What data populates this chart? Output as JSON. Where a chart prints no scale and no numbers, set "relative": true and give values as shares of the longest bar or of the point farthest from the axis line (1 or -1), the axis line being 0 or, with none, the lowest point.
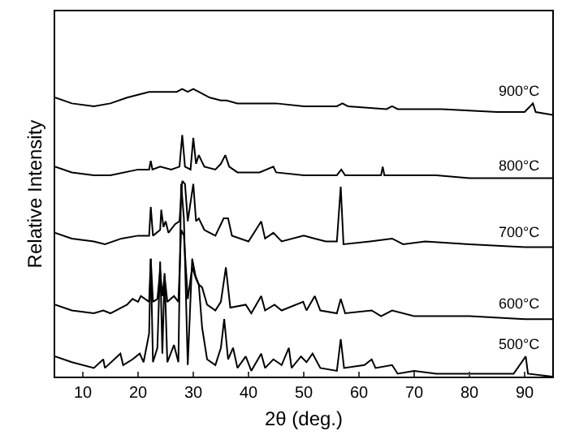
{
  "chart_data": {
    "type": "line",
    "xlabel": "2θ (deg.)",
    "ylabel": "Relative Intensity",
    "relative": true,
    "xlim": [
      5,
      95
    ],
    "xticks": [
      10,
      20,
      30,
      40,
      50,
      60,
      70,
      80,
      90
    ],
    "legend": false,
    "marker": "none",
    "line_style": "solid",
    "series": [
      {
        "name": "900°C",
        "color": "#000000",
        "x": [
          5,
          8,
          12,
          15,
          18,
          20,
          22,
          25,
          27,
          28,
          29,
          30,
          31,
          33,
          35,
          36,
          38,
          42,
          45,
          50,
          56,
          57,
          58,
          65,
          66,
          67,
          75,
          85,
          90,
          91.5,
          92,
          95
        ],
        "values": [
          0.97,
          0.95,
          0.94,
          0.95,
          0.97,
          0.98,
          0.99,
          0.99,
          0.99,
          1.0,
          0.99,
          1.0,
          0.99,
          0.97,
          0.96,
          0.96,
          0.95,
          0.95,
          0.95,
          0.94,
          0.94,
          0.95,
          0.94,
          0.93,
          0.94,
          0.93,
          0.93,
          0.92,
          0.92,
          0.95,
          0.92,
          0.91
        ]
      },
      {
        "name": "800°C",
        "color": "#000000",
        "x": [
          5,
          8,
          12,
          15,
          20,
          22,
          22.3,
          22.6,
          24,
          26,
          27.5,
          28,
          28.5,
          29.5,
          30,
          30.5,
          31,
          32,
          34,
          35,
          35.8,
          36.5,
          38,
          42,
          44.5,
          45,
          50,
          56,
          56.8,
          57.5,
          64,
          64.3,
          64.6,
          68,
          74,
          80,
          90,
          95
        ],
        "values": [
          0.73,
          0.71,
          0.7,
          0.7,
          0.72,
          0.72,
          0.75,
          0.72,
          0.73,
          0.72,
          0.73,
          0.84,
          0.73,
          0.72,
          0.83,
          0.74,
          0.77,
          0.73,
          0.72,
          0.74,
          0.77,
          0.73,
          0.71,
          0.71,
          0.73,
          0.71,
          0.7,
          0.7,
          0.72,
          0.7,
          0.7,
          0.73,
          0.7,
          0.7,
          0.7,
          0.69,
          0.69,
          0.69
        ]
      },
      {
        "name": "700°C",
        "color": "#000000",
        "x": [
          5,
          8,
          12,
          14,
          17,
          20,
          22,
          22.3,
          22.7,
          24,
          24.2,
          24.6,
          25,
          25.5,
          26.7,
          27.5,
          28,
          28.5,
          29,
          30,
          30.5,
          31,
          32,
          34,
          35,
          35.5,
          36.3,
          37,
          40,
          42.3,
          43,
          44.5,
          46,
          50,
          52,
          54,
          56,
          56.7,
          57.2,
          62,
          66,
          68,
          72,
          80,
          90,
          95
        ],
        "values": [
          0.5,
          0.48,
          0.47,
          0.46,
          0.48,
          0.49,
          0.49,
          0.59,
          0.49,
          0.51,
          0.58,
          0.52,
          0.54,
          0.5,
          0.53,
          0.54,
          0.68,
          0.67,
          0.54,
          0.67,
          0.54,
          0.55,
          0.51,
          0.49,
          0.53,
          0.55,
          0.55,
          0.49,
          0.47,
          0.54,
          0.48,
          0.5,
          0.47,
          0.49,
          0.48,
          0.47,
          0.47,
          0.66,
          0.46,
          0.47,
          0.48,
          0.46,
          0.47,
          0.46,
          0.45,
          0.45
        ]
      },
      {
        "name": "600°C",
        "color": "#000000",
        "x": [
          5,
          8,
          12,
          13.7,
          15,
          18,
          19,
          20,
          20.5,
          22,
          22.3,
          22.7,
          23.5,
          24,
          24.4,
          24.8,
          25.3,
          26.5,
          27.3,
          27.8,
          28.3,
          29,
          29.8,
          30.5,
          31,
          31.6,
          32.5,
          34,
          35,
          35.9,
          36.7,
          39.5,
          40.5,
          42.3,
          43,
          44.7,
          46,
          49.9,
          50.5,
          52,
          53,
          56,
          56.7,
          57.5,
          62.3,
          64,
          66,
          70,
          80,
          90,
          95
        ],
        "values": [
          0.25,
          0.23,
          0.22,
          0.23,
          0.22,
          0.25,
          0.27,
          0.26,
          0.28,
          0.26,
          0.41,
          0.26,
          0.27,
          0.37,
          0.28,
          0.35,
          0.26,
          0.28,
          0.26,
          0.51,
          0.49,
          0.27,
          0.38,
          0.34,
          0.32,
          0.31,
          0.25,
          0.23,
          0.26,
          0.38,
          0.24,
          0.25,
          0.22,
          0.28,
          0.23,
          0.25,
          0.23,
          0.26,
          0.23,
          0.28,
          0.23,
          0.22,
          0.27,
          0.22,
          0.23,
          0.21,
          0.23,
          0.21,
          0.21,
          0.2,
          0.2
        ]
      },
      {
        "name": "500°C",
        "color": "#000000",
        "x": [
          5,
          8,
          12,
          13.7,
          14,
          16.8,
          17.3,
          19,
          20.3,
          21,
          22,
          22.3,
          22.7,
          23.5,
          24,
          24.4,
          24.8,
          25.3,
          26.5,
          27.3,
          27.8,
          28.3,
          29,
          29.8,
          30.4,
          31,
          31.6,
          32.5,
          34,
          35,
          35.6,
          36.3,
          37.2,
          38,
          39.5,
          40.5,
          42.3,
          43,
          44.5,
          46,
          47.3,
          47.8,
          49.5,
          50.5,
          51.6,
          53,
          56,
          56.7,
          57.3,
          61,
          62.3,
          63,
          66,
          67,
          70,
          74,
          80,
          84,
          88,
          90.2,
          90.6,
          95
        ],
        "values": [
          0.07,
          0.05,
          0.03,
          0.06,
          0.03,
          0.08,
          0.04,
          0.06,
          0.08,
          0.05,
          0.15,
          0.41,
          0.05,
          0.1,
          0.4,
          0.08,
          0.36,
          0.05,
          0.11,
          0.05,
          0.67,
          0.55,
          0.04,
          0.41,
          0.35,
          0.32,
          0.17,
          0.06,
          0.04,
          0.1,
          0.2,
          0.06,
          0.1,
          0.03,
          0.07,
          0.02,
          0.08,
          0.03,
          0.06,
          0.04,
          0.1,
          0.03,
          0.07,
          0.05,
          0.08,
          0.03,
          0.02,
          0.13,
          0.03,
          0.04,
          0.06,
          0.03,
          0.04,
          0.01,
          0.02,
          0.01,
          0.01,
          0.01,
          0.01,
          0.07,
          0.01,
          0.0
        ]
      }
    ]
  }
}
